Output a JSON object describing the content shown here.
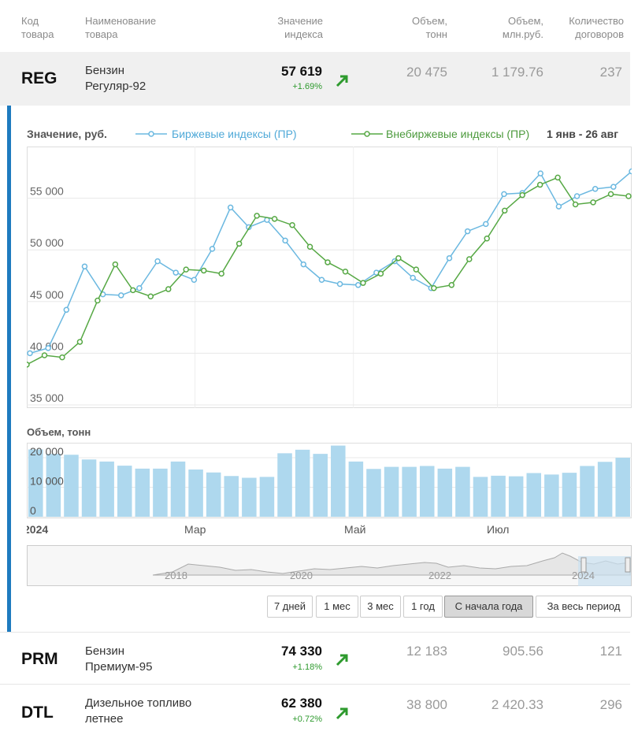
{
  "header": {
    "code": [
      "Код",
      "товара"
    ],
    "name": [
      "Наименование",
      "товара"
    ],
    "value": [
      "Значение",
      "индекса"
    ],
    "volume_t": [
      "Объем,",
      "тонн"
    ],
    "volume_rub": [
      "Объем,",
      "млн.руб."
    ],
    "contracts": [
      "Количество",
      "договоров"
    ]
  },
  "rows": [
    {
      "code": "REG",
      "name1": "Бензин",
      "name2": "Регуляр-92",
      "value": "57 619",
      "change": "+1.69%",
      "volume_t": "20 475",
      "volume_rub": "1 179.76",
      "contracts": "237"
    },
    {
      "code": "PRM",
      "name1": "Бензин",
      "name2": "Премиум-95",
      "value": "74 330",
      "change": "+1.18%",
      "volume_t": "12 183",
      "volume_rub": "905.56",
      "contracts": "121"
    },
    {
      "code": "DTL",
      "name1": "Дизельное топливо",
      "name2": "летнее",
      "value": "62 380",
      "change": "+0.72%",
      "volume_t": "38 800",
      "volume_rub": "2 420.33",
      "contracts": "296"
    }
  ],
  "colors": {
    "accent": "#1e7bbf",
    "up": "#2e9a2e",
    "exchange": "#6bb8e0",
    "otc": "#56a844",
    "bar": "#aed8ee"
  },
  "chart_data": [
    {
      "type": "line",
      "title": "Значение, руб.",
      "date_range": "1 янв - 26 авг",
      "ylim": [
        35000,
        60000
      ],
      "y_ticks": [
        "35 000",
        "40 000",
        "45 000",
        "50 000",
        "55 000"
      ],
      "x_ticks": [
        "2024",
        "Мар",
        "Май",
        "Июл"
      ],
      "series": [
        {
          "name": "Биржевые индексы (ПР)",
          "color": "#6bb8e0",
          "values": [
            40000,
            40500,
            44200,
            48400,
            45700,
            45600,
            46300,
            48900,
            47800,
            47100,
            50100,
            54100,
            52200,
            52900,
            50900,
            48600,
            47100,
            46700,
            46600,
            47800,
            48900,
            47300,
            46300,
            49200,
            51800,
            52500,
            55400,
            55500,
            57400,
            54200,
            55200,
            55900,
            56100,
            57600
          ]
        },
        {
          "name": "Внебиржевые индексы (ПР)",
          "color": "#56a844",
          "values": [
            38900,
            39800,
            39600,
            41100,
            45100,
            48600,
            46100,
            45500,
            46200,
            48100,
            48000,
            47700,
            50600,
            53300,
            53000,
            52400,
            50300,
            48800,
            47900,
            46800,
            47700,
            49200,
            48100,
            46300,
            46600,
            49100,
            51100,
            53800,
            55300,
            56300,
            57000,
            54400,
            54600,
            55400,
            55200
          ]
        }
      ]
    },
    {
      "type": "bar",
      "title": "Объем, тонн",
      "ylim": [
        0,
        24000
      ],
      "y_ticks": [
        "0",
        "10 000",
        "20 000"
      ],
      "values": [
        22800,
        21300,
        21000,
        19400,
        18700,
        17300,
        16300,
        16300,
        18700,
        16000,
        15000,
        13800,
        13200,
        13500,
        21500,
        22700,
        21300,
        24100,
        18700,
        16200,
        16900,
        16900,
        17200,
        16300,
        16900,
        13500,
        13900,
        13700,
        14800,
        14300,
        14900,
        17200,
        18600,
        20000
      ]
    }
  ],
  "navigator": {
    "years": [
      "2018",
      "2020",
      "2022",
      "2024"
    ]
  },
  "range_buttons": [
    "7 дней",
    "1 мес",
    "3 мес",
    "1 год",
    "С начала года",
    "За весь период"
  ],
  "active_range": "С начала года"
}
